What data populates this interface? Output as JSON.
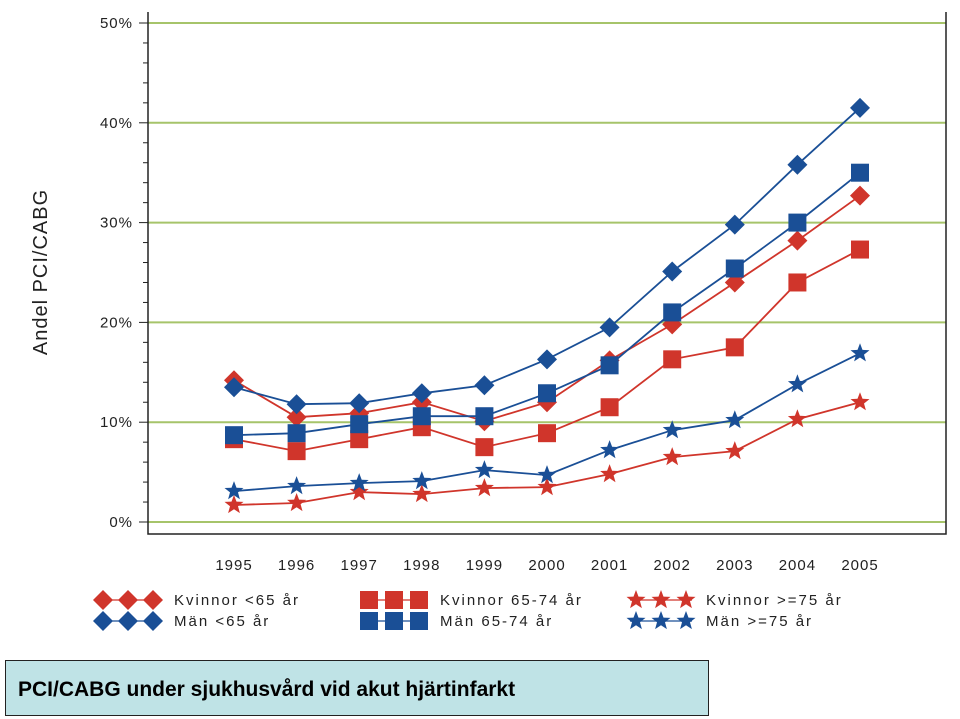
{
  "chart_data": {
    "type": "line",
    "ylabel": "Andel PCI/CABG",
    "xlabel": "",
    "title": "",
    "x": [
      1995,
      1996,
      1997,
      1998,
      1999,
      2000,
      2001,
      2002,
      2003,
      2004,
      2005
    ],
    "x_tick_labels": [
      "1995",
      "1996",
      "1997",
      "1998",
      "1999",
      "2000",
      "2001",
      "2002",
      "2003",
      "2004",
      "2005"
    ],
    "y_ticks": [
      0,
      10,
      20,
      30,
      40,
      50
    ],
    "y_tick_labels": [
      "0%",
      "10%",
      "20%",
      "30%",
      "40%",
      "50%"
    ],
    "ylim": [
      0,
      50
    ],
    "grid": "horizontal",
    "legend_position": "bottom",
    "series": [
      {
        "name": "Kvinnor <65 år",
        "marker": "diamond",
        "color": "#d0352b",
        "values": [
          14.2,
          10.5,
          10.9,
          12.0,
          10.1,
          12.0,
          16.2,
          19.8,
          24.0,
          28.2,
          32.7
        ]
      },
      {
        "name": "Män <65 år",
        "marker": "diamond",
        "color": "#1a4f96",
        "values": [
          13.5,
          11.8,
          11.9,
          12.9,
          13.7,
          16.3,
          19.5,
          25.1,
          29.8,
          35.8,
          41.5
        ]
      },
      {
        "name": "Kvinnor 65-74 år",
        "marker": "square",
        "color": "#d0352b",
        "values": [
          8.3,
          7.1,
          8.3,
          9.5,
          7.5,
          8.9,
          11.5,
          16.3,
          17.5,
          24.0,
          27.3
        ]
      },
      {
        "name": "Män 65-74 år",
        "marker": "square",
        "color": "#1a4f96",
        "values": [
          8.7,
          8.9,
          9.8,
          10.6,
          10.6,
          12.9,
          15.7,
          21.0,
          25.4,
          30.0,
          35.0
        ]
      },
      {
        "name": "Kvinnor >=75 år",
        "marker": "star",
        "color": "#d0352b",
        "values": [
          1.7,
          1.9,
          3.0,
          2.8,
          3.4,
          3.5,
          4.8,
          6.5,
          7.1,
          10.3,
          12.0
        ]
      },
      {
        "name": "Män >=75 år",
        "marker": "star",
        "color": "#1a4f96",
        "values": [
          3.1,
          3.6,
          3.9,
          4.1,
          5.2,
          4.7,
          7.2,
          9.2,
          10.2,
          13.8,
          16.9
        ]
      }
    ],
    "legend": [
      {
        "line1": "Kvinnor <65 år",
        "line2": "Män <65 år",
        "marker": "diamond"
      },
      {
        "line1": "Kvinnor 65-74 år",
        "line2": "Män 65-74 år",
        "marker": "square"
      },
      {
        "line1": "Kvinnor >=75 år",
        "line2": "Män >=75 år",
        "marker": "star"
      }
    ],
    "colors": {
      "gridline": "#a6c46a",
      "axis": "#222222",
      "women": "#d0352b",
      "men": "#1a4f96"
    }
  },
  "footer": {
    "title": "PCI/CABG under sjukhusvård vid akut hjärtinfarkt",
    "background": "#bfe3e6"
  }
}
